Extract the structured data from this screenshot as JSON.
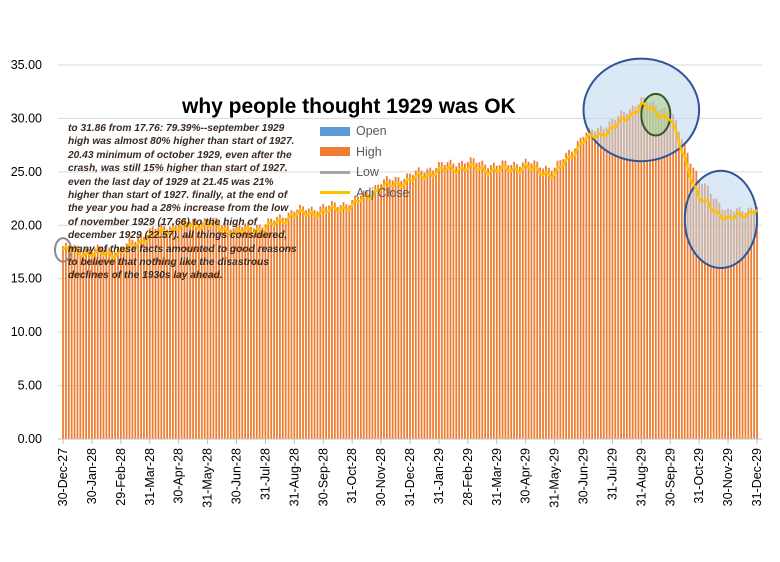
{
  "chart_data": {
    "type": "bar",
    "title": "why people thought 1929 was OK",
    "annotation": "to 31.86 from 17.76: 79.39%--september 1929 high was almost 80% higher than start of 1927.  20.43 minimum of october 1929, even after the crash, was still 15% higher than start of 1927. even the last day of 1929 at 21.45 was 21% higher than start of 1927.  finally, at the end of the year you had a 28% increase from the low of november 1929 (17.66) to the high of december 1929 (22.57).  all things considered, many of these facts amounted to good reasons to believe that nothing like the disastrous declines of the 1930s lay ahead.",
    "ylim": [
      0,
      35
    ],
    "y_ticks": [
      "0.00",
      "5.00",
      "10.00",
      "15.00",
      "20.00",
      "25.00",
      "30.00",
      "35.00"
    ],
    "x_ticks": [
      "30-Dec-27",
      "30-Jan-28",
      "29-Feb-28",
      "31-Mar-28",
      "30-Apr-28",
      "31-May-28",
      "30-Jun-28",
      "31-Jul-28",
      "31-Aug-28",
      "30-Sep-28",
      "31-Oct-28",
      "30-Nov-28",
      "31-Dec-28",
      "31-Jan-29",
      "28-Feb-29",
      "31-Mar-29",
      "30-Apr-29",
      "31-May-29",
      "30-Jun-29",
      "31-Jul-29",
      "31-Aug-29",
      "30-Sep-29",
      "31-Oct-29",
      "30-Nov-29",
      "31-Dec-29"
    ],
    "legend": [
      {
        "name": "Open",
        "color": "#5b9bd5"
      },
      {
        "name": "High",
        "color": "#ed7d31"
      },
      {
        "name": "Low",
        "color": "#a5a5a5"
      },
      {
        "name": "Adj Close",
        "color": "#ffc000"
      }
    ],
    "series_high_monthly_approx": {
      "x": [
        "30-Dec-27",
        "30-Jan-28",
        "29-Feb-28",
        "31-Mar-28",
        "30-Apr-28",
        "31-May-28",
        "30-Jun-28",
        "31-Jul-28",
        "31-Aug-28",
        "30-Sep-28",
        "31-Oct-28",
        "30-Nov-28",
        "31-Dec-28",
        "31-Jan-29",
        "28-Feb-29",
        "31-Mar-29",
        "30-Apr-29",
        "31-May-29",
        "30-Jun-29",
        "31-Jul-29",
        "31-Aug-29",
        "30-Sep-29",
        "31-Oct-29",
        "30-Nov-29",
        "31-Dec-29"
      ],
      "values": [
        17.8,
        17.5,
        17.6,
        19.3,
        20.0,
        20.3,
        19.6,
        19.9,
        21.2,
        21.5,
        22.0,
        23.8,
        24.5,
        25.4,
        25.8,
        25.4,
        25.7,
        25.1,
        28.2,
        29.5,
        31.5,
        30.5,
        24.0,
        21.0,
        21.5
      ]
    },
    "series_adj_close_monthly_approx": {
      "x": [
        "30-Dec-27",
        "30-Jan-28",
        "29-Feb-28",
        "31-Mar-28",
        "30-Apr-28",
        "31-May-28",
        "30-Jun-28",
        "31-Jul-28",
        "31-Aug-28",
        "30-Sep-28",
        "31-Oct-28",
        "30-Nov-28",
        "31-Dec-28",
        "31-Jan-29",
        "28-Feb-29",
        "31-Mar-29",
        "30-Apr-29",
        "31-May-29",
        "30-Jun-29",
        "31-Jul-29",
        "31-Aug-29",
        "30-Sep-29",
        "31-Oct-29",
        "30-Nov-29",
        "31-Dec-29"
      ],
      "values": [
        17.7,
        17.3,
        17.4,
        19.0,
        19.8,
        20.1,
        19.3,
        19.7,
        21.0,
        21.2,
        21.8,
        23.5,
        24.2,
        25.1,
        25.4,
        25.1,
        25.4,
        24.7,
        27.9,
        29.0,
        31.2,
        30.0,
        22.5,
        20.5,
        21.45
      ]
    },
    "highlight_ellipses": [
      {
        "label": "start-of-period",
        "x_from": "30-Dec-27",
        "x_to": "30-Dec-27",
        "y_from": 16.6,
        "y_to": 18.8,
        "fill": "none",
        "stroke": "#8a8a8a"
      },
      {
        "label": "summer-1929-peak",
        "x_from": "30-Jun-29",
        "x_to": "31-Oct-29",
        "y_from": 26.0,
        "y_to": 35.6,
        "fill": "#bdd7ee",
        "stroke": "#2f5597"
      },
      {
        "label": "september-1929-high",
        "x_from": "31-Aug-29",
        "x_to": "30-Sep-29",
        "y_from": 28.4,
        "y_to": 32.3,
        "fill": "#a9d18e",
        "stroke": "#375623"
      },
      {
        "label": "late-1929-range",
        "x_from": "15-Oct-29",
        "x_to": "31-Dec-29",
        "y_from": 16.0,
        "y_to": 25.1,
        "fill": "#bdd7ee",
        "stroke": "#2f5597"
      }
    ]
  }
}
